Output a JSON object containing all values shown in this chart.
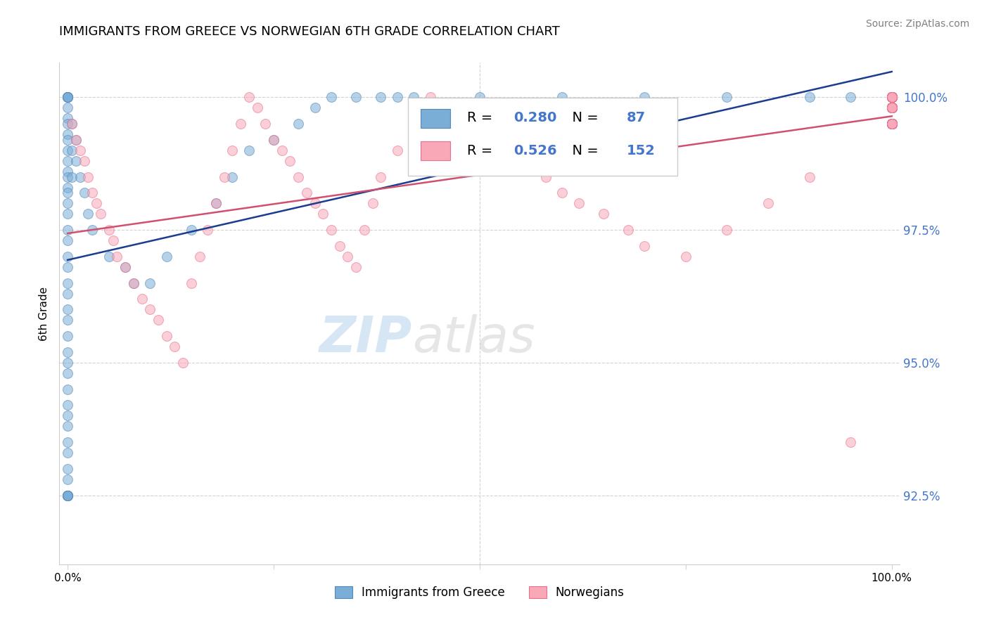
{
  "title": "IMMIGRANTS FROM GREECE VS NORWEGIAN 6TH GRADE CORRELATION CHART",
  "source": "Source: ZipAtlas.com",
  "ylabel": "6th Grade",
  "legend_label1": "Immigrants from Greece",
  "legend_label2": "Norwegians",
  "legend_R1": "0.280",
  "legend_N1": "87",
  "legend_R2": "0.526",
  "legend_N2": "152",
  "ytick_vals": [
    92.5,
    95.0,
    97.5,
    100.0
  ],
  "ytick_labels": [
    "92.5%",
    "95.0%",
    "97.5%",
    "100.0%"
  ],
  "color_blue_fill": "#7aaed6",
  "color_blue_edge": "#5588bb",
  "color_blue_line": "#1a3d8f",
  "color_pink_fill": "#f9a8b8",
  "color_pink_edge": "#e87090",
  "color_pink_line": "#d05070",
  "color_ytick": "#4477cc",
  "watermark_color": "#c8dff0",
  "blue_x": [
    0.0,
    0.0,
    0.0,
    0.0,
    0.0,
    0.0,
    0.0,
    0.0,
    0.0,
    0.0,
    0.0,
    0.0,
    0.0,
    0.0,
    0.0,
    0.0,
    0.0,
    0.0,
    0.0,
    0.0,
    0.0,
    0.0,
    0.0,
    0.0,
    0.0,
    0.0,
    0.0,
    0.0,
    0.0,
    0.0,
    0.0,
    0.0,
    0.0,
    0.0,
    0.0,
    0.0,
    0.0,
    0.0,
    0.0,
    0.0,
    0.0,
    0.0,
    0.0,
    0.0,
    0.0,
    0.0,
    0.5,
    0.5,
    0.5,
    1.0,
    1.0,
    1.5,
    2.0,
    2.5,
    3.0,
    5.0,
    7.0,
    8.0,
    10.0,
    12.0,
    15.0,
    18.0,
    20.0,
    22.0,
    25.0,
    28.0,
    30.0,
    32.0,
    35.0,
    38.0,
    40.0,
    42.0,
    50.0,
    60.0,
    70.0,
    80.0,
    90.0,
    95.0,
    100.0,
    100.0,
    100.0,
    100.0,
    100.0,
    100.0,
    100.0,
    100.0,
    100.0
  ],
  "blue_y": [
    100.0,
    100.0,
    100.0,
    100.0,
    100.0,
    100.0,
    99.8,
    99.6,
    99.5,
    99.3,
    99.2,
    99.0,
    98.8,
    98.6,
    98.5,
    98.3,
    98.2,
    98.0,
    97.8,
    97.5,
    97.3,
    97.0,
    96.8,
    96.5,
    96.3,
    96.0,
    95.8,
    95.5,
    95.2,
    95.0,
    94.8,
    94.5,
    94.2,
    94.0,
    93.8,
    93.5,
    93.3,
    93.0,
    92.8,
    92.5,
    92.5,
    92.5,
    92.5,
    92.5,
    92.5,
    92.5,
    99.5,
    99.0,
    98.5,
    99.2,
    98.8,
    98.5,
    98.2,
    97.8,
    97.5,
    97.0,
    96.8,
    96.5,
    96.5,
    97.0,
    97.5,
    98.0,
    98.5,
    99.0,
    99.2,
    99.5,
    99.8,
    100.0,
    100.0,
    100.0,
    100.0,
    100.0,
    100.0,
    100.0,
    100.0,
    100.0,
    100.0,
    100.0,
    99.5,
    99.8,
    100.0,
    99.5,
    99.8,
    100.0,
    99.5,
    99.8,
    100.0
  ],
  "pink_x": [
    0.5,
    1.0,
    1.5,
    2.0,
    2.5,
    3.0,
    3.5,
    4.0,
    5.0,
    5.5,
    6.0,
    7.0,
    8.0,
    9.0,
    10.0,
    11.0,
    12.0,
    13.0,
    14.0,
    15.0,
    16.0,
    17.0,
    18.0,
    19.0,
    20.0,
    21.0,
    22.0,
    23.0,
    24.0,
    25.0,
    26.0,
    27.0,
    28.0,
    29.0,
    30.0,
    31.0,
    32.0,
    33.0,
    34.0,
    35.0,
    36.0,
    37.0,
    38.0,
    40.0,
    42.0,
    44.0,
    46.0,
    48.0,
    50.0,
    52.0,
    55.0,
    58.0,
    60.0,
    62.0,
    65.0,
    68.0,
    70.0,
    75.0,
    80.0,
    85.0,
    90.0,
    95.0,
    100.0,
    100.0,
    100.0,
    100.0,
    100.0,
    100.0,
    100.0,
    100.0,
    100.0,
    100.0,
    100.0,
    100.0,
    100.0,
    100.0,
    100.0,
    100.0,
    100.0,
    100.0,
    100.0,
    100.0,
    100.0,
    100.0,
    100.0,
    100.0,
    100.0,
    100.0,
    100.0,
    100.0,
    100.0,
    100.0,
    100.0,
    100.0,
    100.0,
    100.0,
    100.0,
    100.0,
    100.0,
    100.0,
    100.0,
    100.0,
    100.0,
    100.0,
    100.0,
    100.0,
    100.0,
    100.0,
    100.0,
    100.0,
    100.0,
    100.0,
    100.0,
    100.0,
    100.0,
    100.0,
    100.0,
    100.0,
    100.0,
    100.0,
    100.0,
    100.0,
    100.0,
    100.0,
    100.0,
    100.0,
    100.0,
    100.0,
    100.0,
    100.0,
    100.0,
    100.0,
    100.0,
    100.0,
    100.0,
    100.0,
    100.0,
    100.0,
    100.0,
    100.0,
    100.0,
    100.0,
    100.0,
    100.0,
    100.0,
    100.0,
    100.0,
    100.0,
    100.0,
    100.0,
    100.0,
    100.0,
    100.0
  ],
  "pink_y": [
    99.5,
    99.2,
    99.0,
    98.8,
    98.5,
    98.2,
    98.0,
    97.8,
    97.5,
    97.3,
    97.0,
    96.8,
    96.5,
    96.2,
    96.0,
    95.8,
    95.5,
    95.3,
    95.0,
    96.5,
    97.0,
    97.5,
    98.0,
    98.5,
    99.0,
    99.5,
    100.0,
    99.8,
    99.5,
    99.2,
    99.0,
    98.8,
    98.5,
    98.2,
    98.0,
    97.8,
    97.5,
    97.2,
    97.0,
    96.8,
    97.5,
    98.0,
    98.5,
    99.0,
    99.5,
    100.0,
    99.8,
    99.5,
    99.2,
    99.0,
    98.8,
    98.5,
    98.2,
    98.0,
    97.8,
    97.5,
    97.2,
    97.0,
    97.5,
    98.0,
    98.5,
    93.5,
    100.0,
    100.0,
    99.8,
    99.5,
    100.0,
    99.8,
    99.5,
    100.0,
    99.8,
    99.5,
    100.0,
    99.8,
    99.5,
    100.0,
    99.8,
    100.0,
    99.5,
    99.8,
    100.0,
    99.5,
    99.8,
    100.0,
    99.5,
    99.8,
    100.0,
    99.5,
    99.8,
    100.0,
    99.5,
    99.8,
    100.0,
    99.5,
    99.8,
    100.0,
    99.5,
    99.8,
    100.0,
    99.5,
    99.8,
    100.0,
    99.5,
    99.8,
    100.0,
    99.5,
    99.8,
    100.0,
    99.5,
    99.8,
    100.0,
    99.5,
    99.8,
    100.0,
    99.5,
    99.8,
    100.0,
    99.5,
    99.8,
    100.0,
    99.5,
    99.8,
    100.0,
    99.5,
    99.8,
    100.0,
    99.5,
    99.8,
    100.0,
    99.5,
    99.8,
    100.0,
    99.5,
    99.8,
    100.0,
    99.5,
    99.8,
    100.0,
    99.5,
    99.8,
    100.0,
    99.5,
    99.8,
    100.0,
    99.5,
    99.8,
    100.0,
    99.5,
    99.8,
    100.0,
    99.5,
    99.8,
    100.0
  ]
}
